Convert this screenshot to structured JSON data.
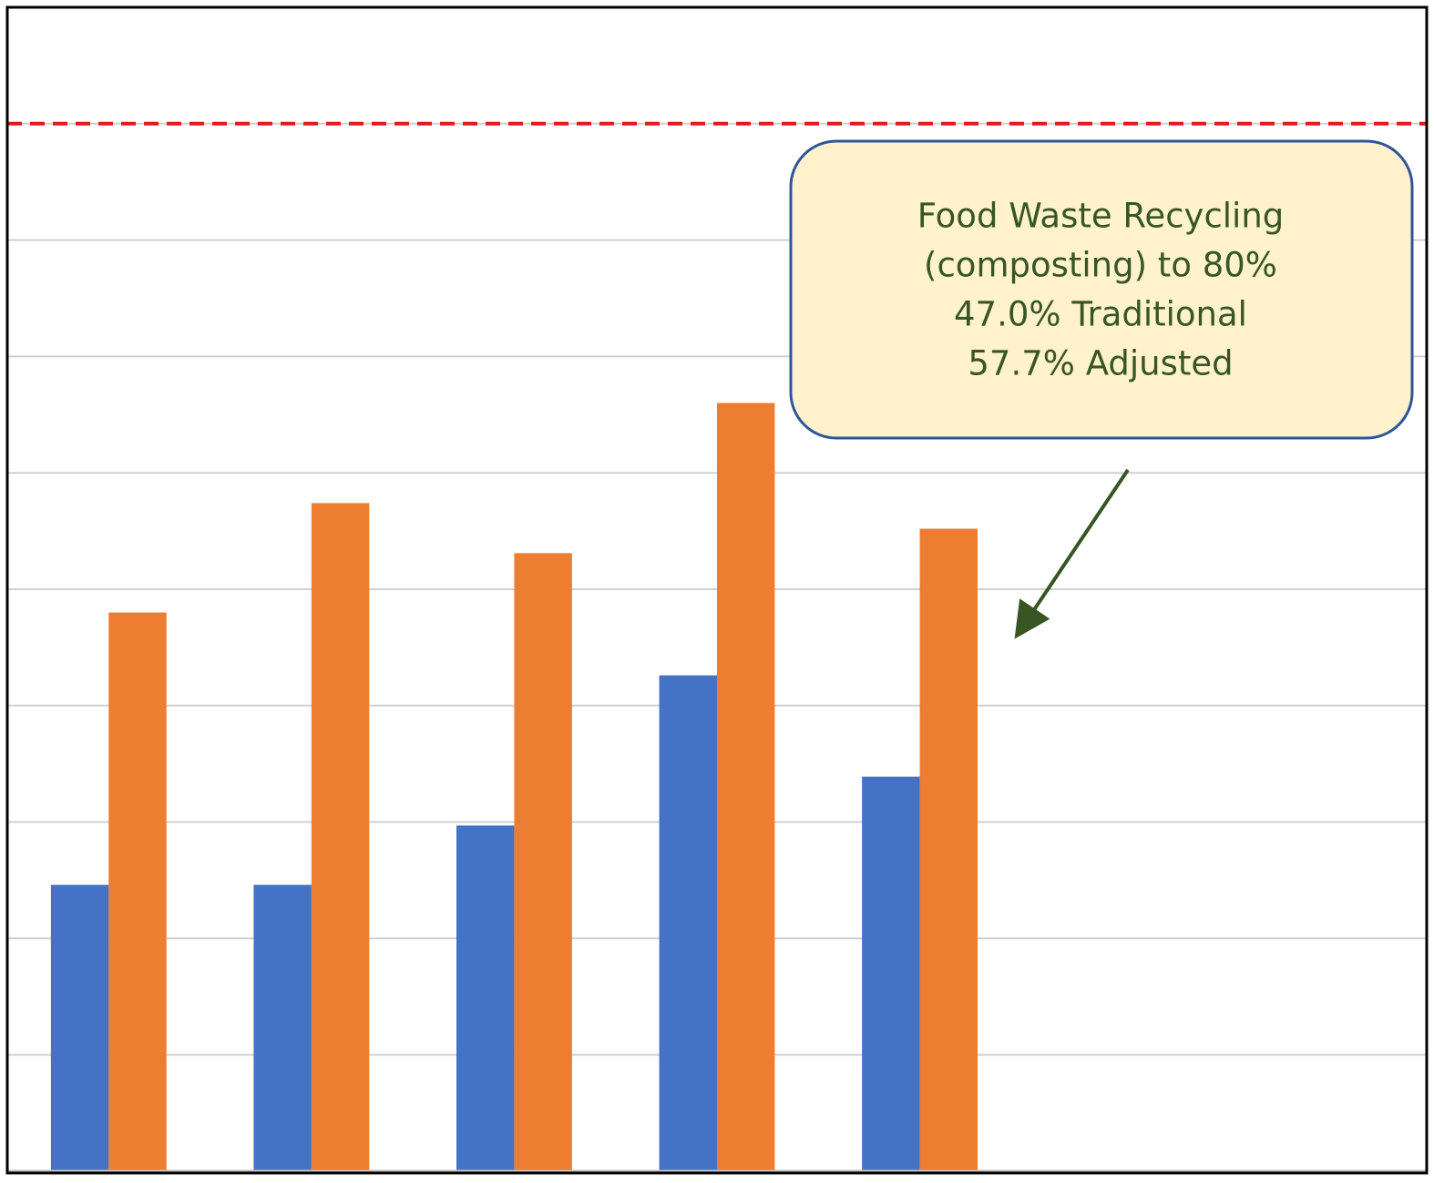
{
  "chart_data": {
    "type": "bar",
    "categories": [
      null,
      null,
      null,
      null,
      null,
      null,
      null
    ],
    "series": [
      {
        "color": "#4472c4",
        "values": [
          24.6,
          24.6,
          29.7,
          42.6,
          33.9,
          null,
          null
        ]
      },
      {
        "color": "#ed7d31",
        "values": [
          48.0,
          57.4,
          53.1,
          66.0,
          55.2,
          null,
          null
        ]
      }
    ],
    "ylim": [
      0,
      100
    ],
    "yticks": [
      0,
      10,
      20,
      30,
      40,
      50,
      60,
      70,
      80,
      90,
      100
    ],
    "grid": true,
    "reference_line": {
      "value": 90,
      "color": "#e31a1c",
      "style": "dashed"
    },
    "annotation": {
      "lines": [
        "Food Waste Recycling",
        "(composting) to 80%",
        "47.0% Traditional",
        "57.7% Adjusted"
      ]
    }
  }
}
